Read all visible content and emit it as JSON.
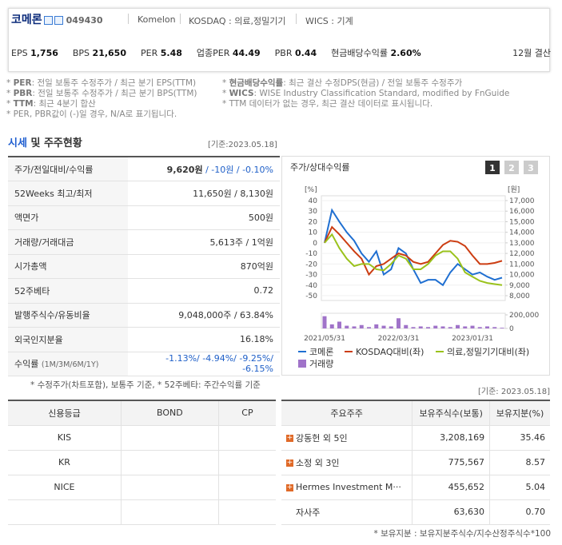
{
  "header": {
    "name": "코메론",
    "code": "049430",
    "english_name": "Komelon",
    "market": "KOSDAQ : 의료,정밀기기",
    "wics": "WICS : 기계",
    "metrics": [
      {
        "label": "EPS",
        "value": "1,756"
      },
      {
        "label": "BPS",
        "value": "21,650"
      },
      {
        "label": "PER",
        "value": "5.48"
      },
      {
        "label": "업종PER",
        "value": "44.49"
      },
      {
        "label": "PBR",
        "value": "0.44"
      },
      {
        "label": "현금배당수익률",
        "value": "2.60%"
      }
    ],
    "fiscal": "12월 결산"
  },
  "notes": {
    "left": [
      {
        "key": "PER",
        "text": ": 전일 보통주 수정주가 / 최근 분기 EPS(TTM)"
      },
      {
        "key": "PBR",
        "text": ": 전일 보통주 수정주가 / 최근 분기 BPS(TTM)"
      },
      {
        "key": "TTM",
        "text": ": 최근 4분기 합산"
      },
      {
        "key": "",
        "text": "PER, PBR값이 (-)일 경우, N/A로 표기됩니다."
      }
    ],
    "right": [
      {
        "key": "현금배당수익률",
        "text": ": 최근 결산 수정DPS(현금) / 전일 보통주 수정주가"
      },
      {
        "key": "WICS",
        "text": ": WISE Industry Classification Standard, modified by FnGuide"
      },
      {
        "key": "",
        "text": "TTM 데이터가 없는 경우, 최근 결산 데이터로 표시됩니다."
      }
    ]
  },
  "section": {
    "title_highlight": "시세",
    "title_rest": "및 주주현황",
    "date": "[기준:2023.05.18]"
  },
  "quote_table": {
    "rows": [
      {
        "label": "주가/전일대비/수익률",
        "value": [
          "9,620원",
          "/ -10원 / -0.10%"
        ]
      },
      {
        "label": "52Weeks 최고/최저",
        "value": [
          "11,650원 / 8,130원"
        ]
      },
      {
        "label": "액면가",
        "value": [
          "500원"
        ]
      },
      {
        "label": "거래량/거래대금",
        "value": [
          "5,613주 / 1억원"
        ]
      },
      {
        "label": "시가총액",
        "value": [
          "870억원"
        ]
      },
      {
        "label": "52주베타",
        "value": [
          "0.72"
        ]
      },
      {
        "label": "발행주식수/유동비율",
        "value": [
          "9,048,000주 / 63.84%"
        ]
      },
      {
        "label": "외국인지분율",
        "value": [
          "16.18%"
        ]
      },
      {
        "label": "수익률",
        "sub": "(1M/3M/6M/1Y)",
        "value": [
          "-1.13%/ -4.94%/ -9.25%/ -6.15%"
        ]
      }
    ],
    "note": "* 수정주가(차트포함), 보통주 기준, * 52주베타: 주간수익률 기준"
  },
  "chart_panel": {
    "title": "주가/상대수익률",
    "buttons": [
      "1",
      "2",
      "3"
    ],
    "y_label": "[%]",
    "y2_label": "[원]"
  },
  "chart_data": {
    "type": "line",
    "categories": [
      "2021/05/31",
      null,
      null,
      null,
      null,
      null,
      null,
      null,
      null,
      null,
      "2022/03/31",
      null,
      null,
      null,
      null,
      null,
      null,
      null,
      null,
      null,
      "2023/01/31",
      null,
      null,
      null,
      null
    ],
    "series": [
      {
        "name": "코메론",
        "color": "#1f6fd1",
        "values": [
          0,
          31,
          20,
          10,
          2,
          -10,
          -18,
          -8,
          -30,
          -25,
          -5,
          -10,
          -25,
          -38,
          -35,
          -35,
          -40,
          -28,
          -20,
          -25,
          -30,
          -28,
          -32,
          -35,
          -33
        ]
      },
      {
        "name": "KOSDAQ대비(좌)",
        "color": "#cc3d12",
        "values": [
          0,
          15,
          8,
          0,
          -8,
          -15,
          -30,
          -22,
          -20,
          -15,
          -10,
          -12,
          -18,
          -20,
          -18,
          -10,
          -2,
          2,
          1,
          -3,
          -12,
          -20,
          -20,
          -19,
          -17
        ]
      },
      {
        "name": "의료,정밀기기대비(좌)",
        "color": "#9ac21c",
        "values": [
          0,
          8,
          -5,
          -15,
          -22,
          -20,
          -20,
          -25,
          -26,
          -20,
          -12,
          -15,
          -25,
          -25,
          -20,
          -12,
          -8,
          -8,
          -15,
          -28,
          -32,
          -36,
          -38,
          -39,
          -40
        ]
      }
    ],
    "volume": {
      "name": "거래량",
      "color": "#a073c9",
      "values": [
        180000,
        60000,
        100000,
        40000,
        30000,
        50000,
        20000,
        60000,
        40000,
        30000,
        150000,
        50000,
        20000,
        30000,
        20000,
        40000,
        30000,
        20000,
        50000,
        30000,
        40000,
        20000,
        30000,
        20000,
        10000
      ],
      "vlim": [
        0,
        200000
      ],
      "vticks": [
        {
          "value": 200000,
          "label": "200,000"
        },
        0
      ]
    },
    "ylim": [
      -50,
      40
    ],
    "yticks": [
      40,
      30,
      20,
      10,
      0,
      -10,
      -20,
      -30,
      -40,
      -50
    ],
    "y2lim": [
      8000,
      17000
    ],
    "y2ticks": [
      {
        "value": 17000,
        "label": "17,000"
      },
      {
        "value": 16000,
        "label": "16,000"
      },
      {
        "value": 15000,
        "label": "15,000"
      },
      {
        "value": 14000,
        "label": "14,000"
      },
      {
        "value": 13000,
        "label": "13,000"
      },
      {
        "value": 12000,
        "label": "12,000"
      },
      {
        "value": 11000,
        "label": "11,000"
      },
      {
        "value": 10000,
        "label": "10,000"
      },
      {
        "value": 9000,
        "label": "9,000"
      },
      {
        "value": 8000,
        "label": "8,000"
      }
    ],
    "grid": true
  },
  "credit_table": {
    "date": "[기준: 2023.05.18]",
    "header": [
      "신용등급",
      "BOND",
      "CP"
    ],
    "rows": [
      [
        "KIS",
        "",
        ""
      ],
      [
        "KR",
        "",
        ""
      ],
      [
        "NICE",
        "",
        ""
      ],
      [
        "",
        "",
        ""
      ]
    ]
  },
  "holders_table": {
    "header": [
      "주요주주",
      "보유주식수(보통)",
      "보유지분(%)"
    ],
    "rows": [
      [
        "강동헌 외 5인",
        "3,208,169",
        "35.46"
      ],
      [
        "소정 외 3인",
        "775,567",
        "8.57"
      ],
      [
        "Hermes Investment M···",
        "455,652",
        "5.04"
      ],
      [
        "자사주",
        "63,630",
        "0.70"
      ]
    ],
    "note": "* 보유지분 : 보유지분주식수/지수산정주식수*100"
  }
}
